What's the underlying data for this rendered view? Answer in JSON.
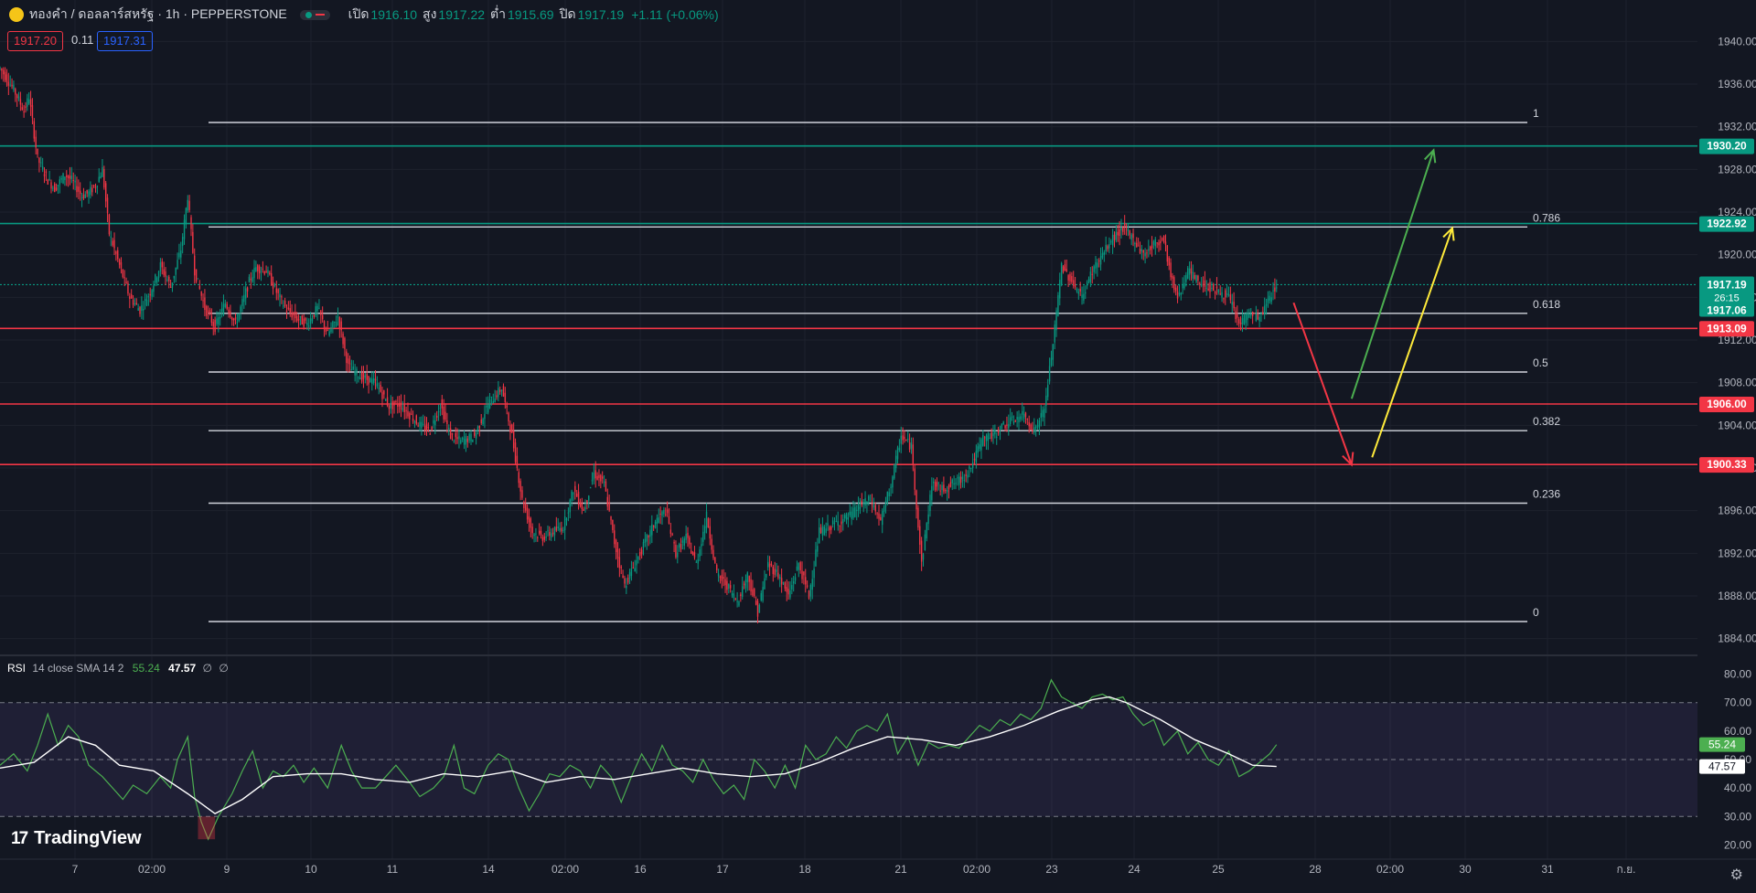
{
  "header": {
    "symbol": "ทองคำ / ดอลลาร์สหรัฐ · 1h · PEPPERSTONE",
    "open_label": "เปิด",
    "open": "1916.10",
    "high_label": "สูง",
    "high": "1917.22",
    "low_label": "ต่ำ",
    "low": "1915.69",
    "close_label": "ปิด",
    "close": "1917.19",
    "change": "+1.11 (+0.06%)"
  },
  "quote": {
    "bid": "1917.20",
    "spread": "0.11",
    "ask": "1917.31"
  },
  "colors": {
    "bg": "#131722",
    "up": "#089981",
    "down": "#f23645",
    "grid": "#1e222d",
    "text": "#b2b5be",
    "rsi": "#4caf50",
    "rsi_ma": "#ffffff"
  },
  "chart_data": {
    "type": "candlestick",
    "title": "ทองคำ / ดอลลาร์สหรัฐ · 1h · PEPPERSTONE",
    "ylim": [
      1882,
      1942
    ],
    "y_ticks": [
      "1940.00",
      "1936.00",
      "1932.00",
      "1928.00",
      "1924.00",
      "1920.00",
      "1916.00",
      "1912.00",
      "1908.00",
      "1904.00",
      "1900.00",
      "1896.00",
      "1892.00",
      "1888.00",
      "1884.00"
    ],
    "x_ticks": [
      "7",
      "02:00",
      "9",
      "10",
      "11",
      "14",
      "02:00",
      "16",
      "17",
      "18",
      "21",
      "02:00",
      "23",
      "24",
      "25",
      "28",
      "02:00",
      "30",
      "31",
      "ก.ย."
    ],
    "price_path": [
      [
        0,
        1937.5
      ],
      [
        8,
        1935.5
      ],
      [
        14,
        1933.5
      ],
      [
        17,
        1934.8
      ],
      [
        22,
        1929
      ],
      [
        28,
        1927
      ],
      [
        32,
        1926.2
      ],
      [
        38,
        1927.5
      ],
      [
        42,
        1927
      ],
      [
        48,
        1925.5
      ],
      [
        52,
        1925.8
      ],
      [
        56,
        1926.5
      ],
      [
        60,
        1928
      ],
      [
        64,
        1922
      ],
      [
        70,
        1919
      ],
      [
        76,
        1916
      ],
      [
        82,
        1914.8
      ],
      [
        88,
        1916.5
      ],
      [
        94,
        1919
      ],
      [
        100,
        1917
      ],
      [
        106,
        1920.5
      ],
      [
        110,
        1925.5
      ],
      [
        114,
        1918.5
      ],
      [
        120,
        1915
      ],
      [
        126,
        1913.2
      ],
      [
        132,
        1915.5
      ],
      [
        138,
        1913.5
      ],
      [
        146,
        1917.5
      ],
      [
        150,
        1918.8
      ],
      [
        156,
        1918.5
      ],
      [
        162,
        1916.5
      ],
      [
        168,
        1914.8
      ],
      [
        174,
        1914
      ],
      [
        180,
        1913.5
      ],
      [
        186,
        1915
      ],
      [
        192,
        1912.5
      ],
      [
        198,
        1914.2
      ],
      [
        204,
        1909.5
      ],
      [
        212,
        1908.5
      ],
      [
        220,
        1908
      ],
      [
        228,
        1905.8
      ],
      [
        234,
        1906
      ],
      [
        240,
        1905
      ],
      [
        246,
        1904
      ],
      [
        252,
        1903.5
      ],
      [
        258,
        1906
      ],
      [
        264,
        1903
      ],
      [
        270,
        1902.5
      ],
      [
        278,
        1903
      ],
      [
        286,
        1906
      ],
      [
        294,
        1907.5
      ],
      [
        300,
        1903
      ],
      [
        306,
        1897
      ],
      [
        312,
        1894
      ],
      [
        318,
        1893.5
      ],
      [
        324,
        1894
      ],
      [
        330,
        1894.5
      ],
      [
        336,
        1898
      ],
      [
        342,
        1896
      ],
      [
        348,
        1899.5
      ],
      [
        354,
        1898.5
      ],
      [
        360,
        1893
      ],
      [
        366,
        1889
      ],
      [
        372,
        1891
      ],
      [
        378,
        1893
      ],
      [
        384,
        1895
      ],
      [
        390,
        1896
      ],
      [
        396,
        1892
      ],
      [
        402,
        1893.5
      ],
      [
        408,
        1891
      ],
      [
        414,
        1895.5
      ],
      [
        420,
        1890
      ],
      [
        426,
        1889
      ],
      [
        432,
        1887.5
      ],
      [
        438,
        1890
      ],
      [
        444,
        1886.5
      ],
      [
        450,
        1891
      ],
      [
        456,
        1890
      ],
      [
        462,
        1888
      ],
      [
        468,
        1891
      ],
      [
        474,
        1888
      ],
      [
        480,
        1894
      ],
      [
        486,
        1894.5
      ],
      [
        492,
        1895
      ],
      [
        498,
        1895.5
      ],
      [
        504,
        1896.5
      ],
      [
        510,
        1897
      ],
      [
        516,
        1895
      ],
      [
        522,
        1898.5
      ],
      [
        528,
        1903
      ],
      [
        534,
        1902
      ],
      [
        540,
        1891
      ],
      [
        546,
        1898.5
      ],
      [
        552,
        1898
      ],
      [
        558,
        1898.5
      ],
      [
        564,
        1899
      ],
      [
        570,
        1900.5
      ],
      [
        576,
        1902.8
      ],
      [
        582,
        1903
      ],
      [
        588,
        1904
      ],
      [
        594,
        1904.5
      ],
      [
        600,
        1905
      ],
      [
        606,
        1903.5
      ],
      [
        612,
        1905.5
      ],
      [
        618,
        1913
      ],
      [
        622,
        1919
      ],
      [
        628,
        1917.5
      ],
      [
        634,
        1916
      ],
      [
        640,
        1918.5
      ],
      [
        646,
        1920
      ],
      [
        652,
        1921.5
      ],
      [
        658,
        1922.5
      ],
      [
        664,
        1921.5
      ],
      [
        670,
        1920
      ],
      [
        676,
        1921
      ],
      [
        682,
        1921.5
      ],
      [
        686,
        1918
      ],
      [
        690,
        1916
      ],
      [
        696,
        1918.5
      ],
      [
        702,
        1917.5
      ],
      [
        708,
        1917
      ],
      [
        714,
        1916.5
      ],
      [
        720,
        1916
      ],
      [
        726,
        1913.5
      ],
      [
        732,
        1914.5
      ],
      [
        738,
        1914
      ],
      [
        744,
        1916
      ],
      [
        748,
        1917.2
      ]
    ],
    "current_price": 1917.19,
    "fibonacci": [
      {
        "level": "1",
        "price": 1932.4
      },
      {
        "level": "0.786",
        "price": 1922.6
      },
      {
        "level": "0.618",
        "price": 1914.5
      },
      {
        "level": "0.5",
        "price": 1909.0
      },
      {
        "level": "0.382",
        "price": 1903.5
      },
      {
        "level": "0.236",
        "price": 1896.7
      },
      {
        "level": "0",
        "price": 1885.6
      }
    ],
    "horizontal_levels": [
      {
        "price": 1930.2,
        "label": "1930.20",
        "color": "#089981"
      },
      {
        "price": 1922.92,
        "label": "1922.92",
        "color": "#089981"
      },
      {
        "price": 1913.09,
        "label": "1913.09",
        "color": "#f23645"
      },
      {
        "price": 1906.0,
        "label": "1906.00",
        "color": "#f23645"
      },
      {
        "price": 1900.33,
        "label": "1900.33",
        "color": "#f23645"
      }
    ],
    "last_price_tag": {
      "price": "1917.19",
      "countdown": "26:15",
      "prev": "1917.06"
    },
    "arrows": [
      {
        "color": "#f23645",
        "from": [
          758,
          1915.5
        ],
        "to": [
          792,
          1900.3
        ]
      },
      {
        "color": "#4caf50",
        "from": [
          792,
          1906.5
        ],
        "to": [
          840,
          1929.8
        ]
      },
      {
        "color": "#ffeb3b",
        "from": [
          804,
          1901
        ],
        "to": [
          851,
          1922.5
        ]
      }
    ],
    "rsi": {
      "label": "RSI",
      "params": "14 close SMA 14 2",
      "value": "55.24",
      "ma_value": "47.57",
      "na1": "∅",
      "na2": "∅",
      "ylim": [
        15,
        85
      ],
      "y_ticks": [
        "80.00",
        "70.00",
        "60.00",
        "50.00",
        "40.00",
        "30.00",
        "20.00"
      ],
      "bands": [
        30,
        50,
        70
      ],
      "series": [
        [
          0,
          48
        ],
        [
          8,
          52
        ],
        [
          16,
          46
        ],
        [
          22,
          55
        ],
        [
          28,
          66
        ],
        [
          34,
          55
        ],
        [
          40,
          62
        ],
        [
          46,
          58
        ],
        [
          52,
          48
        ],
        [
          60,
          44
        ],
        [
          66,
          40
        ],
        [
          72,
          36
        ],
        [
          78,
          41
        ],
        [
          86,
          38
        ],
        [
          94,
          44
        ],
        [
          100,
          40
        ],
        [
          104,
          50
        ],
        [
          110,
          58
        ],
        [
          114,
          37
        ],
        [
          118,
          28
        ],
        [
          122,
          22
        ],
        [
          128,
          30
        ],
        [
          136,
          38
        ],
        [
          142,
          46
        ],
        [
          148,
          53
        ],
        [
          154,
          40
        ],
        [
          160,
          46
        ],
        [
          166,
          44
        ],
        [
          172,
          48
        ],
        [
          178,
          42
        ],
        [
          184,
          47
        ],
        [
          192,
          40
        ],
        [
          200,
          55
        ],
        [
          206,
          46
        ],
        [
          212,
          40
        ],
        [
          220,
          40
        ],
        [
          226,
          44
        ],
        [
          232,
          48
        ],
        [
          240,
          42
        ],
        [
          246,
          37
        ],
        [
          254,
          40
        ],
        [
          260,
          44
        ],
        [
          266,
          55
        ],
        [
          272,
          40
        ],
        [
          278,
          38
        ],
        [
          286,
          48
        ],
        [
          292,
          52
        ],
        [
          298,
          50
        ],
        [
          304,
          40
        ],
        [
          310,
          32
        ],
        [
          316,
          38
        ],
        [
          322,
          45
        ],
        [
          328,
          44
        ],
        [
          334,
          48
        ],
        [
          340,
          46
        ],
        [
          346,
          40
        ],
        [
          352,
          48
        ],
        [
          358,
          44
        ],
        [
          364,
          35
        ],
        [
          370,
          44
        ],
        [
          376,
          52
        ],
        [
          382,
          46
        ],
        [
          388,
          55
        ],
        [
          394,
          48
        ],
        [
          400,
          46
        ],
        [
          406,
          42
        ],
        [
          412,
          50
        ],
        [
          418,
          43
        ],
        [
          424,
          38
        ],
        [
          430,
          41
        ],
        [
          436,
          36
        ],
        [
          442,
          50
        ],
        [
          448,
          46
        ],
        [
          454,
          40
        ],
        [
          460,
          48
        ],
        [
          466,
          40
        ],
        [
          472,
          55
        ],
        [
          478,
          50
        ],
        [
          484,
          52
        ],
        [
          490,
          58
        ],
        [
          496,
          54
        ],
        [
          502,
          60
        ],
        [
          508,
          62
        ],
        [
          514,
          60
        ],
        [
          520,
          66
        ],
        [
          526,
          52
        ],
        [
          532,
          58
        ],
        [
          538,
          48
        ],
        [
          544,
          56
        ],
        [
          550,
          54
        ],
        [
          556,
          55
        ],
        [
          562,
          54
        ],
        [
          568,
          58
        ],
        [
          574,
          62
        ],
        [
          580,
          60
        ],
        [
          586,
          64
        ],
        [
          592,
          62
        ],
        [
          598,
          66
        ],
        [
          604,
          64
        ],
        [
          610,
          68
        ],
        [
          616,
          78
        ],
        [
          622,
          72
        ],
        [
          628,
          70
        ],
        [
          634,
          68
        ],
        [
          640,
          72
        ],
        [
          646,
          73
        ],
        [
          652,
          71
        ],
        [
          658,
          72
        ],
        [
          664,
          66
        ],
        [
          670,
          62
        ],
        [
          676,
          64
        ],
        [
          682,
          55
        ],
        [
          690,
          60
        ],
        [
          696,
          52
        ],
        [
          702,
          56
        ],
        [
          708,
          50
        ],
        [
          714,
          48
        ],
        [
          720,
          53
        ],
        [
          726,
          44
        ],
        [
          732,
          46
        ],
        [
          738,
          49
        ],
        [
          744,
          52
        ],
        [
          748,
          55.24
        ]
      ],
      "ma_series": [
        [
          0,
          47
        ],
        [
          20,
          49
        ],
        [
          40,
          58
        ],
        [
          56,
          55
        ],
        [
          70,
          48
        ],
        [
          90,
          46
        ],
        [
          110,
          38
        ],
        [
          126,
          31
        ],
        [
          142,
          36
        ],
        [
          160,
          44
        ],
        [
          180,
          45
        ],
        [
          200,
          45
        ],
        [
          220,
          43
        ],
        [
          240,
          42
        ],
        [
          260,
          45
        ],
        [
          280,
          44
        ],
        [
          300,
          46
        ],
        [
          320,
          42
        ],
        [
          340,
          44
        ],
        [
          360,
          43
        ],
        [
          380,
          45
        ],
        [
          400,
          47
        ],
        [
          420,
          45
        ],
        [
          440,
          44
        ],
        [
          460,
          45
        ],
        [
          480,
          49
        ],
        [
          500,
          54
        ],
        [
          520,
          58
        ],
        [
          540,
          57
        ],
        [
          560,
          55
        ],
        [
          580,
          58
        ],
        [
          600,
          62
        ],
        [
          620,
          67
        ],
        [
          640,
          71
        ],
        [
          650,
          72
        ],
        [
          660,
          70
        ],
        [
          680,
          64
        ],
        [
          700,
          57
        ],
        [
          720,
          52
        ],
        [
          734,
          48
        ],
        [
          748,
          47.57
        ]
      ]
    }
  },
  "branding": {
    "logo_text": "TradingView"
  }
}
